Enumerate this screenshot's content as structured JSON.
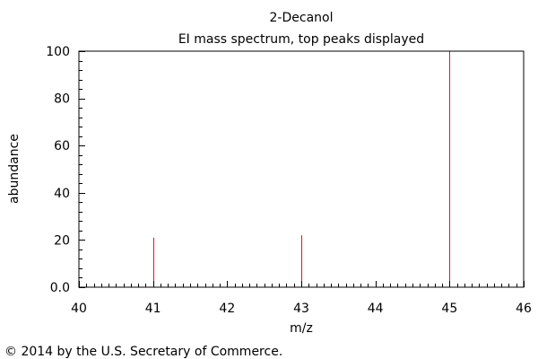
{
  "chart_data": {
    "type": "bar",
    "title": "2-Decanol",
    "subtitle": "EI mass spectrum, top peaks displayed",
    "xlabel": "m/z",
    "ylabel": "abundance",
    "xlim": [
      40,
      46
    ],
    "ylim": [
      0,
      100
    ],
    "x_ticks": [
      "40",
      "41",
      "42",
      "43",
      "44",
      "45",
      "46"
    ],
    "y_ticks": [
      "0.0",
      "20",
      "40",
      "60",
      "80",
      "100"
    ],
    "peaks": [
      {
        "mz": 41,
        "abundance": 21
      },
      {
        "mz": 43,
        "abundance": 22
      },
      {
        "mz": 45,
        "abundance": 100
      }
    ],
    "peak_color": "#e8141c",
    "grid": false
  },
  "footer": {
    "copyright": "© 2014 by the U.S. Secretary of Commerce."
  }
}
